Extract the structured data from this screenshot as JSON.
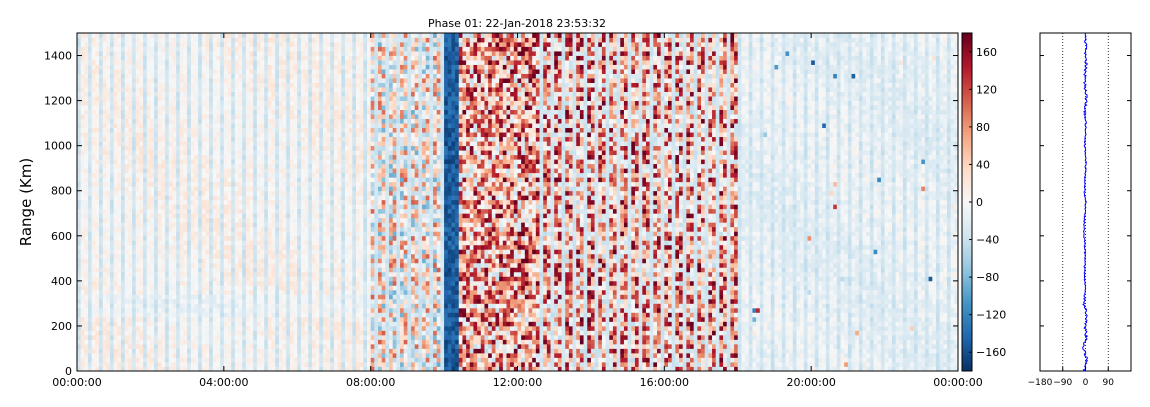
{
  "chart_data": [
    {
      "type": "heatmap",
      "title": "Phase 01: 22-Jan-2018 23:53:32",
      "xlabel": "",
      "ylabel": "Range (Km)",
      "x_tick_labels": [
        "00:00:00",
        "04:00:00",
        "08:00:00",
        "12:00:00",
        "16:00:00",
        "20:00:00",
        "00:00:00"
      ],
      "x_ticks_hours": [
        0,
        4,
        8,
        12,
        16,
        20,
        24
      ],
      "xlim_hours": [
        0,
        24
      ],
      "y_ticks": [
        0,
        200,
        400,
        600,
        800,
        1000,
        1200,
        1400
      ],
      "ylim": [
        0,
        1500
      ],
      "colormap": "RdBu_r",
      "clim": [
        -180,
        180
      ],
      "colorbar_ticks": [
        -160,
        -120,
        -80,
        -40,
        0,
        40,
        80,
        120,
        160
      ],
      "regions": [
        {
          "from_hours": 0,
          "to_hours": 8,
          "description": "weak mixed positive/negative phase"
        },
        {
          "from_hours": 8,
          "to_hours": 10,
          "description": "noisy mixed phase"
        },
        {
          "from_hours": 10,
          "to_hours": 10.4,
          "description": "strong negative phase band",
          "value": -150
        },
        {
          "from_hours": 10.4,
          "to_hours": 18,
          "description": "strong noisy mostly positive phase"
        },
        {
          "from_hours": 18,
          "to_hours": 24,
          "description": "weak negative phase"
        }
      ],
      "grid": false
    },
    {
      "type": "line",
      "title": "",
      "xlabel": "",
      "ylabel": "",
      "x_ticks": [
        -180,
        -90,
        0,
        90
      ],
      "x_tick_labels": [
        "−180",
        "−90",
        "0",
        "90"
      ],
      "xlim": [
        -180,
        180
      ],
      "ylim": [
        0,
        1500
      ],
      "reference_lines_x": [
        -90,
        0,
        90
      ],
      "series": [
        {
          "color": "#0000ff",
          "y": [
            0,
            50,
            100,
            150,
            200,
            250,
            300,
            350,
            400,
            450,
            500,
            550,
            600,
            650,
            700,
            750,
            800,
            850,
            900,
            950,
            1000,
            1050,
            1100,
            1150,
            1200,
            1250,
            1300,
            1350,
            1400,
            1450,
            1500
          ],
          "x": [
            -5,
            5,
            -8,
            3,
            -2,
            4,
            -6,
            0,
            -3,
            -4,
            -2,
            -3,
            -5,
            -7,
            -2,
            1,
            -4,
            -2,
            0,
            2,
            -3,
            0,
            1,
            -2,
            4,
            0,
            -3,
            2,
            1,
            0,
            3
          ]
        }
      ]
    }
  ]
}
